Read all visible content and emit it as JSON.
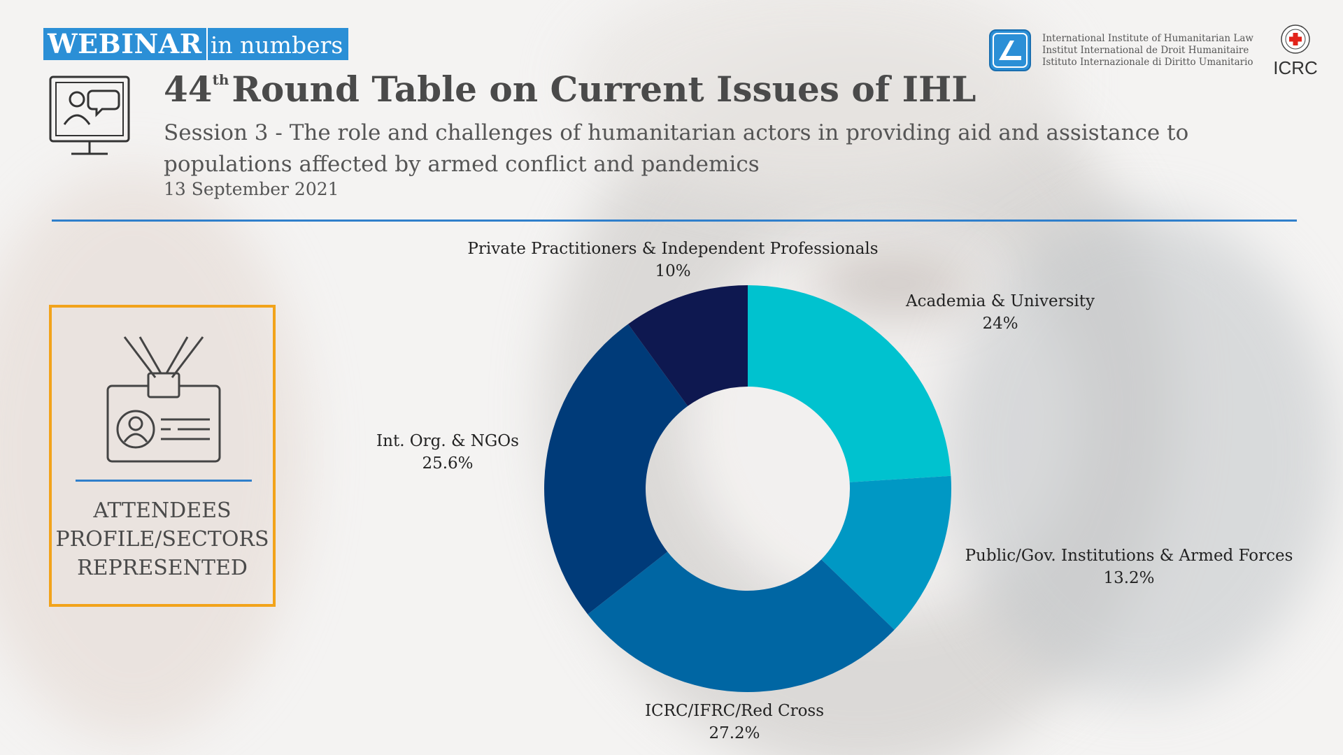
{
  "badge": {
    "strong": "WEBINAR",
    "light": "in numbers"
  },
  "title": {
    "number": "44",
    "sup": "th",
    "text": "Round Table on Current Issues of IHL"
  },
  "subtitle": "Session 3 - The role and challenges of humanitarian actors in providing aid and assistance to populations affected by armed conflict and pandemics",
  "date": "13 September 2021",
  "logos": {
    "iihl_lines": [
      "International Institute of Humanitarian Law",
      "Institut International de Droit Humanitaire",
      "Istituto Internazionale di Diritto Umanitario"
    ],
    "icrc": "ICRC",
    "icrc_logo_icon": "red-cross-emblem-icon",
    "iihl_logo_icon": "iihl-hand-logo-icon"
  },
  "profile": {
    "label_lines": [
      "ATTENDEES",
      "PROFILE/SECTORS",
      "REPRESENTED"
    ],
    "icon": "id-badge-icon"
  },
  "colors": {
    "accent_blue": "#2f7fcb",
    "box_orange": "#f2a31b"
  },
  "chart_data": {
    "type": "pie",
    "donut": true,
    "title": "",
    "slices": [
      {
        "label": "Academia & University",
        "value": 24,
        "display": "24%",
        "color": "#00c2cf"
      },
      {
        "label": "Public/Gov. Institutions & Armed Forces",
        "value": 13.2,
        "display": "13.2%",
        "color": "#0098c4"
      },
      {
        "label": "ICRC/IFRC/Red Cross",
        "value": 27.2,
        "display": "27.2%",
        "color": "#0066a3"
      },
      {
        "label": "Int. Org. & NGOs",
        "value": 25.6,
        "display": "25.6%",
        "color": "#003b79"
      },
      {
        "label": "Private Practitioners & Independent Professionals",
        "value": 10,
        "display": "10%",
        "color": "#0e1850"
      }
    ]
  }
}
